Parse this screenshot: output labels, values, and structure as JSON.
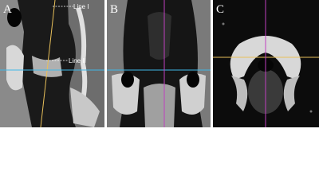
{
  "panels": [
    {
      "label": "A",
      "annotations": [
        "Line I",
        "Line II"
      ]
    },
    {
      "label": "B"
    },
    {
      "label": "C"
    }
  ]
}
